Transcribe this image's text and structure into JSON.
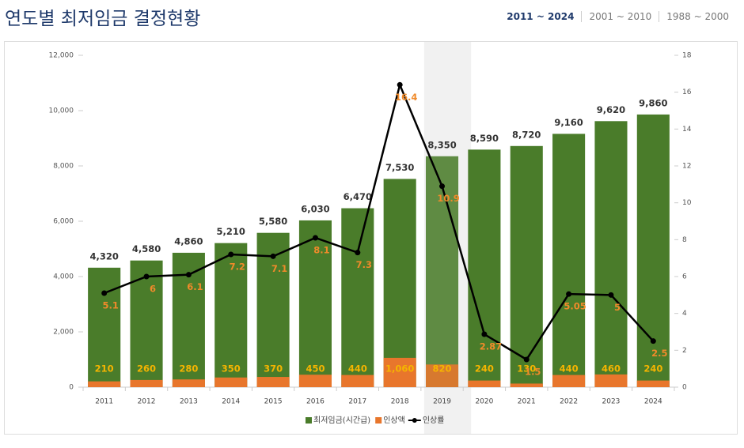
{
  "header": {
    "title": "연도별 최저임금 결정현황",
    "tabs": [
      "2011 ~ 2024",
      "2001 ~ 2010",
      "1988 ~ 2000"
    ]
  },
  "chart_data": {
    "type": "bar",
    "categories": [
      "2011",
      "2012",
      "2013",
      "2014",
      "2015",
      "2016",
      "2017",
      "2018",
      "2019",
      "2020",
      "2021",
      "2022",
      "2023",
      "2024"
    ],
    "series": [
      {
        "name": "최저임금(시간급)",
        "color": "#4a7c2a",
        "values": [
          4320,
          4580,
          4860,
          5210,
          5580,
          6030,
          6470,
          7530,
          8350,
          8590,
          8720,
          9160,
          9620,
          9860
        ],
        "value_labels": [
          "4,320",
          "4,580",
          "4,860",
          "5,210",
          "5,580",
          "6,030",
          "6,470",
          "7,530",
          "8,350",
          "8,590",
          "8,720",
          "9,160",
          "9,620",
          "9,860"
        ]
      },
      {
        "name": "인상액",
        "color": "#e8762c",
        "values": [
          210,
          260,
          280,
          350,
          370,
          450,
          440,
          1060,
          820,
          240,
          130,
          440,
          460,
          240
        ],
        "value_labels": [
          "210",
          "260",
          "280",
          "350",
          "370",
          "450",
          "440",
          "1,060",
          "820",
          "240",
          "130",
          "440",
          "460",
          "240"
        ]
      },
      {
        "name": "인상률",
        "color": "#000000",
        "type": "line",
        "axis": "y2",
        "values": [
          5.1,
          6,
          6.1,
          7.2,
          7.1,
          8.1,
          7.3,
          16.4,
          10.9,
          2.87,
          1.5,
          5.05,
          5,
          2.5
        ]
      }
    ],
    "ylim": [
      0,
      12000
    ],
    "yticks": [
      0,
      {
        "value": 2000,
        "label": "2,000"
      },
      {
        "value": 4000,
        "label": "4,000"
      },
      {
        "value": 6000,
        "label": "6,000"
      },
      {
        "value": 8000,
        "label": "8,000"
      },
      {
        "value": 10000,
        "label": "10,000"
      },
      {
        "value": 12000,
        "label": "12,000"
      }
    ],
    "y2lim": [
      0,
      18
    ],
    "y2ticks": [
      0,
      2,
      4,
      6,
      8,
      10,
      12,
      14,
      16,
      18
    ],
    "grid": false,
    "legend": "bottom"
  }
}
